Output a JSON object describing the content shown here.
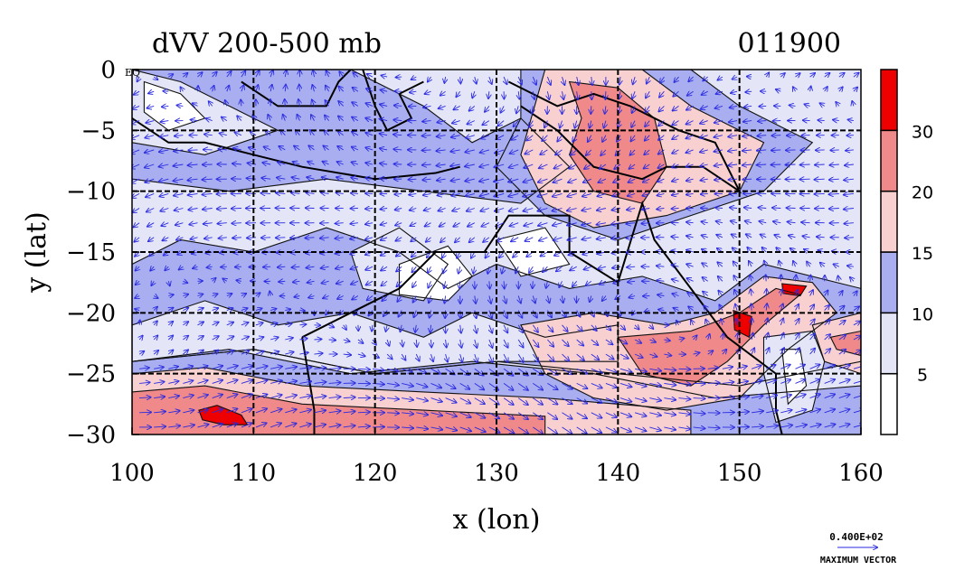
{
  "chart_data": {
    "type": "heatmap",
    "title": "dVV 200-500 mb",
    "title_right": "011900",
    "xlabel": "x (lon)",
    "ylabel": "y (lat)",
    "xlim": [
      100,
      160
    ],
    "ylim": [
      -30,
      0
    ],
    "x_ticks": [
      100,
      110,
      120,
      130,
      140,
      150,
      160
    ],
    "y_ticks": [
      0,
      -5,
      -10,
      -15,
      -20,
      -25,
      -30
    ],
    "grid": true,
    "colorbar": {
      "levels": [
        0,
        5,
        10,
        15,
        20,
        30,
        40
      ],
      "labels": [
        "5",
        "10",
        "15",
        "20",
        "30"
      ],
      "colors": [
        "#ffffff",
        "#e4e6f8",
        "#a8aef0",
        "#f8d0d0",
        "#f08a8a",
        "#ee0000"
      ]
    },
    "vector_legend": {
      "value": "0.400E+02",
      "label": "MAXIMUM VECTOR"
    },
    "corner_label": "EQ",
    "regions": [
      {
        "level": 2,
        "points": [
          [
            100,
            -16
          ],
          [
            104,
            -14
          ],
          [
            110,
            -15
          ],
          [
            116,
            -13
          ],
          [
            122,
            -15
          ],
          [
            126,
            -18
          ],
          [
            130,
            -16
          ],
          [
            136,
            -18
          ],
          [
            142,
            -17
          ],
          [
            148,
            -19
          ],
          [
            152,
            -16
          ],
          [
            160,
            -18
          ],
          [
            160,
            -24
          ],
          [
            150,
            -26
          ],
          [
            140,
            -25
          ],
          [
            130,
            -24
          ],
          [
            120,
            -25
          ],
          [
            110,
            -23
          ],
          [
            100,
            -24
          ]
        ]
      },
      {
        "level": 1,
        "points": [
          [
            100,
            -21
          ],
          [
            106,
            -19
          ],
          [
            112,
            -21
          ],
          [
            118,
            -20
          ],
          [
            124,
            -22
          ],
          [
            128,
            -20
          ],
          [
            134,
            -22
          ],
          [
            140,
            -21
          ],
          [
            140,
            -24
          ],
          [
            130,
            -24
          ],
          [
            120,
            -25
          ],
          [
            110,
            -23
          ],
          [
            100,
            -24
          ]
        ]
      },
      {
        "level": 2,
        "points": [
          [
            100,
            -24
          ],
          [
            108,
            -23
          ],
          [
            118,
            -25
          ],
          [
            128,
            -24
          ],
          [
            138,
            -25
          ],
          [
            148,
            -27
          ],
          [
            160,
            -26
          ],
          [
            160,
            -30
          ],
          [
            100,
            -30
          ]
        ]
      },
      {
        "level": 3,
        "points": [
          [
            100,
            -25
          ],
          [
            106,
            -24.5
          ],
          [
            114,
            -26
          ],
          [
            124,
            -26.5
          ],
          [
            134,
            -27
          ],
          [
            146,
            -28
          ],
          [
            146,
            -30
          ],
          [
            100,
            -30
          ]
        ]
      },
      {
        "level": 4,
        "points": [
          [
            100,
            -26.5
          ],
          [
            106,
            -26
          ],
          [
            114,
            -27.5
          ],
          [
            124,
            -28
          ],
          [
            134,
            -28.5
          ],
          [
            134,
            -30
          ],
          [
            100,
            -30
          ]
        ]
      },
      {
        "level": 5,
        "points": [
          [
            105.5,
            -28
          ],
          [
            107,
            -27.6
          ],
          [
            109,
            -28.4
          ],
          [
            109.5,
            -29.2
          ],
          [
            107.5,
            -29.2
          ],
          [
            105.8,
            -28.8
          ]
        ]
      },
      {
        "level": 2,
        "points": [
          [
            100,
            0
          ],
          [
            118,
            0
          ],
          [
            124,
            -3
          ],
          [
            128,
            -6
          ],
          [
            132,
            -4
          ],
          [
            136,
            -8
          ],
          [
            132,
            -11
          ],
          [
            124,
            -10
          ],
          [
            116,
            -9
          ],
          [
            108,
            -10
          ],
          [
            100,
            -9
          ]
        ]
      },
      {
        "level": 1,
        "points": [
          [
            100,
            0
          ],
          [
            104,
            -1
          ],
          [
            108,
            -3
          ],
          [
            112,
            -5
          ],
          [
            106,
            -7
          ],
          [
            100,
            -6
          ]
        ]
      },
      {
        "level": 0,
        "points": [
          [
            101,
            -1
          ],
          [
            104,
            -2
          ],
          [
            106,
            -4
          ],
          [
            103,
            -5
          ],
          [
            101,
            -3.5
          ]
        ]
      },
      {
        "level": 1,
        "points": [
          [
            118,
            -15
          ],
          [
            122,
            -13
          ],
          [
            126,
            -16
          ],
          [
            124,
            -19
          ],
          [
            119,
            -18
          ]
        ]
      },
      {
        "level": 0,
        "points": [
          [
            122,
            -16
          ],
          [
            126,
            -14.5
          ],
          [
            128,
            -17
          ],
          [
            126,
            -19
          ],
          [
            122,
            -18.5
          ]
        ]
      },
      {
        "level": 0,
        "points": [
          [
            130,
            -14
          ],
          [
            134,
            -13
          ],
          [
            136,
            -16
          ],
          [
            132,
            -17
          ]
        ]
      },
      {
        "level": 2,
        "points": [
          [
            132,
            0
          ],
          [
            146,
            0
          ],
          [
            150,
            -3
          ],
          [
            156,
            -6
          ],
          [
            152,
            -10
          ],
          [
            146,
            -12
          ],
          [
            140,
            -14
          ],
          [
            134,
            -12
          ],
          [
            130,
            -8
          ],
          [
            132,
            -4
          ]
        ]
      },
      {
        "level": 3,
        "points": [
          [
            134,
            0
          ],
          [
            142,
            0
          ],
          [
            146,
            -3
          ],
          [
            152,
            -6
          ],
          [
            150,
            -10
          ],
          [
            144,
            -12
          ],
          [
            138,
            -13
          ],
          [
            134,
            -11
          ],
          [
            132,
            -7
          ]
        ]
      },
      {
        "level": 4,
        "points": [
          [
            136,
            -1
          ],
          [
            140,
            -1.5
          ],
          [
            143,
            -4
          ],
          [
            144,
            -8
          ],
          [
            142,
            -11
          ],
          [
            138,
            -10
          ],
          [
            136,
            -7
          ],
          [
            137,
            -4
          ]
        ]
      },
      {
        "level": 3,
        "points": [
          [
            132,
            -21
          ],
          [
            138,
            -20
          ],
          [
            144,
            -21
          ],
          [
            148,
            -20
          ],
          [
            152,
            -17
          ],
          [
            156,
            -17.5
          ],
          [
            158,
            -20
          ],
          [
            154,
            -23
          ],
          [
            150,
            -27
          ],
          [
            144,
            -28
          ],
          [
            138,
            -27
          ],
          [
            134,
            -25
          ]
        ]
      },
      {
        "level": 4,
        "points": [
          [
            140,
            -22
          ],
          [
            146,
            -21.5
          ],
          [
            150,
            -20
          ],
          [
            153,
            -18
          ],
          [
            155,
            -18.5
          ],
          [
            152,
            -21
          ],
          [
            149,
            -24
          ],
          [
            146,
            -26
          ],
          [
            142,
            -25
          ]
        ]
      },
      {
        "level": 5,
        "points": [
          [
            149.5,
            -19.8
          ],
          [
            151,
            -20.3
          ],
          [
            150.8,
            -22
          ],
          [
            149.6,
            -21.4
          ]
        ]
      },
      {
        "level": 5,
        "points": [
          [
            153.5,
            -17.6
          ],
          [
            155.5,
            -17.8
          ],
          [
            155,
            -18.6
          ],
          [
            153.6,
            -18.4
          ]
        ]
      },
      {
        "level": 1,
        "points": [
          [
            152,
            -22
          ],
          [
            156,
            -21.5
          ],
          [
            157,
            -24
          ],
          [
            156,
            -28
          ],
          [
            153,
            -29
          ],
          [
            152,
            -25
          ]
        ]
      },
      {
        "level": 0,
        "points": [
          [
            153.5,
            -23
          ],
          [
            155,
            -23
          ],
          [
            155.5,
            -26
          ],
          [
            154,
            -27.5
          ]
        ]
      },
      {
        "level": 3,
        "points": [
          [
            156,
            -21
          ],
          [
            160,
            -20
          ],
          [
            160,
            -25
          ],
          [
            157,
            -24
          ]
        ]
      },
      {
        "level": 4,
        "points": [
          [
            157.5,
            -22
          ],
          [
            160,
            -21.5
          ],
          [
            160,
            -23.5
          ],
          [
            158,
            -23
          ]
        ]
      }
    ]
  }
}
